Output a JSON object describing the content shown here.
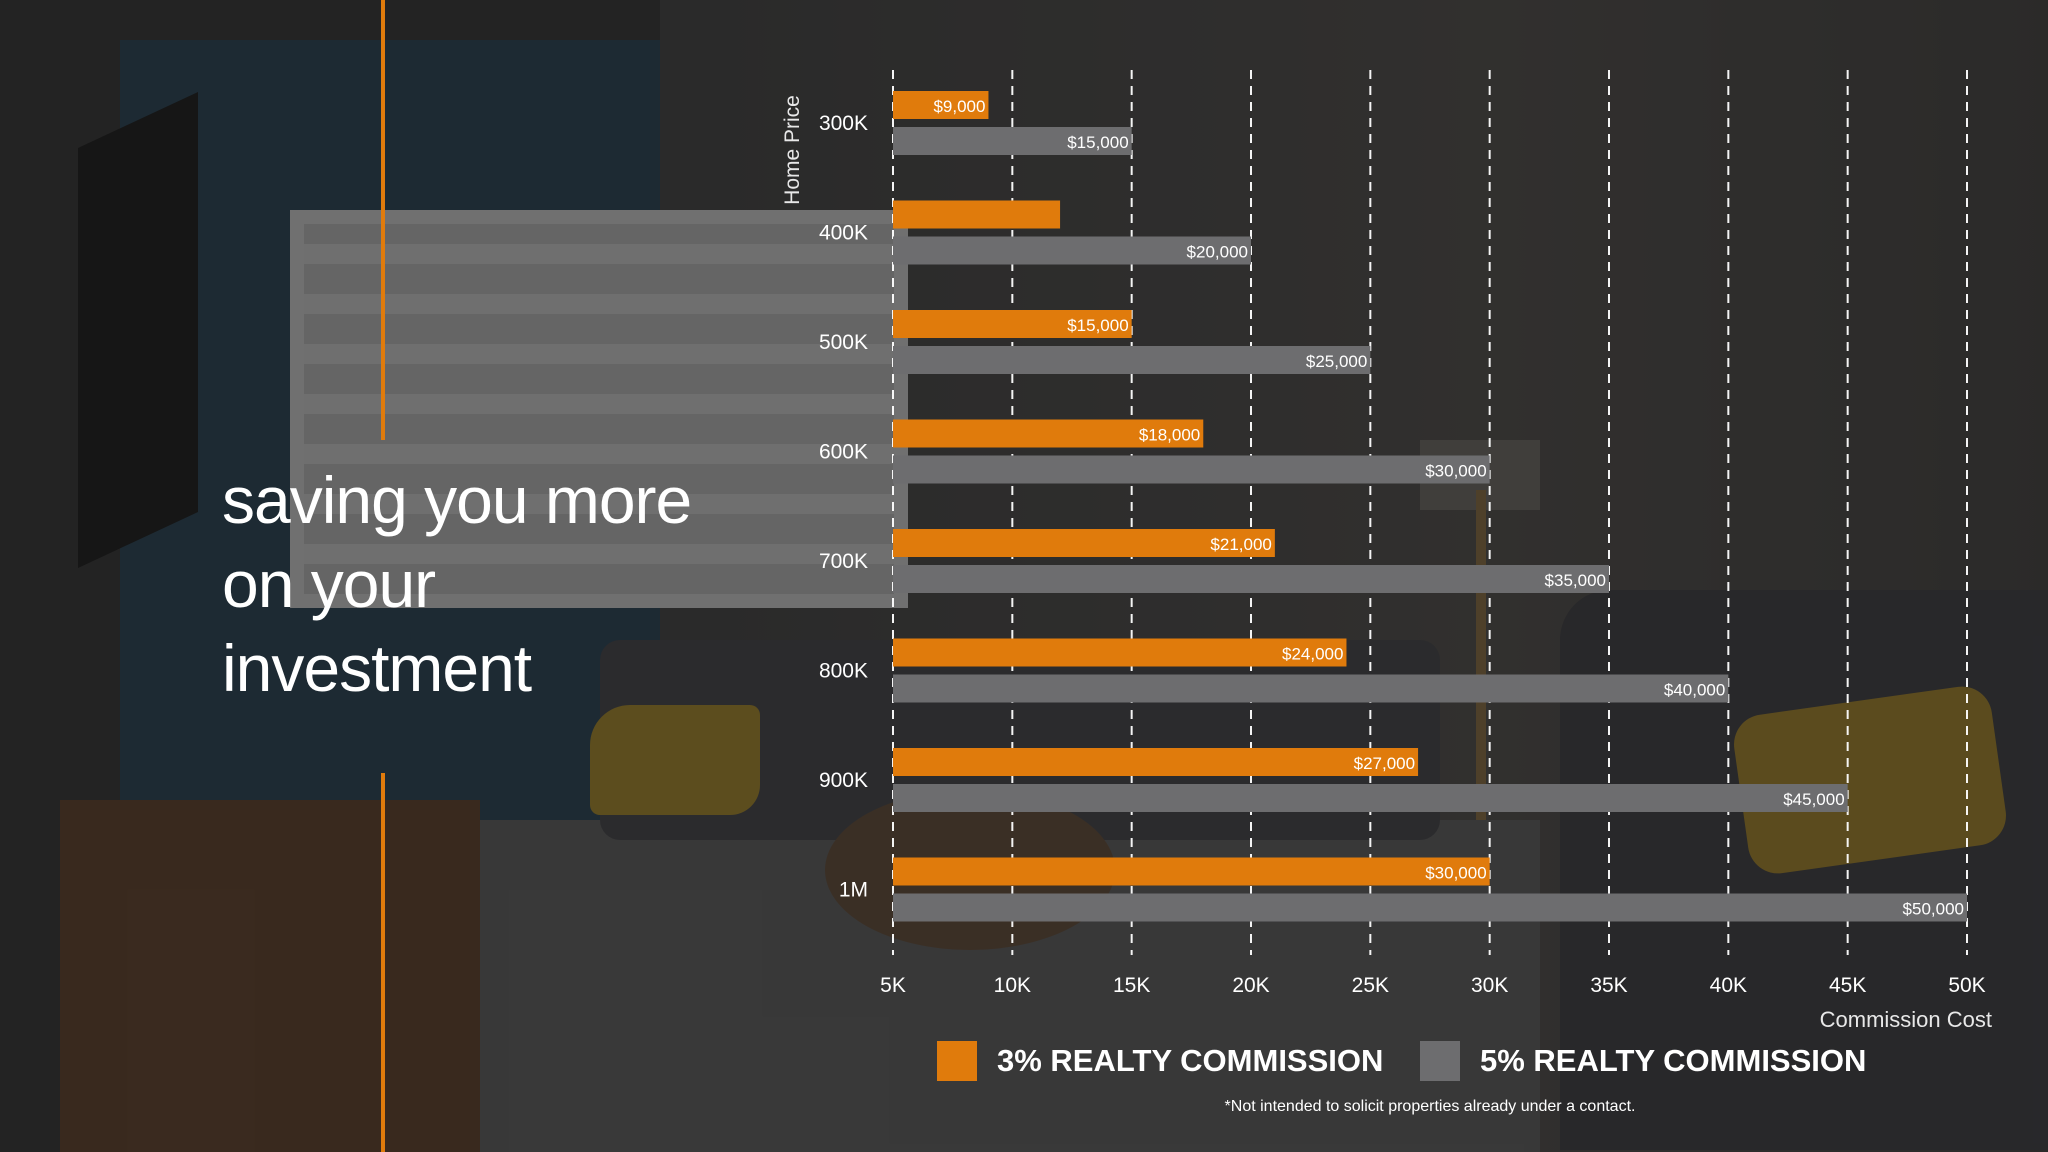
{
  "headline": "saving you more on your investment",
  "colors": {
    "accent": "#e07b0c",
    "series_3pct": "#e07b0c",
    "series_5pct": "#6d6d6f",
    "text": "#ffffff",
    "grid": "#ffffff"
  },
  "chart_data": {
    "type": "bar",
    "orientation": "horizontal",
    "categories": [
      "300K",
      "400K",
      "500K",
      "600K",
      "700K",
      "800K",
      "900K",
      "1M"
    ],
    "series": [
      {
        "name": "3% REALTY COMMISSION",
        "values": [
          9000,
          12000,
          15000,
          18000,
          21000,
          24000,
          27000,
          30000
        ],
        "labels": [
          "$9,000",
          "",
          "$15,000",
          "$18,000",
          "$21,000",
          "$24,000",
          "$27,000",
          "$30,000"
        ]
      },
      {
        "name": "5% REALTY COMMISSION",
        "values": [
          15000,
          20000,
          25000,
          30000,
          35000,
          40000,
          45000,
          50000
        ],
        "labels": [
          "$15,000",
          "$20,000",
          "$25,000",
          "$30,000",
          "$35,000",
          "$40,000",
          "$45,000",
          "$50,000"
        ]
      }
    ],
    "x_ticks": [
      "5K",
      "10K",
      "15K",
      "20K",
      "25K",
      "30K",
      "35K",
      "40K",
      "45K",
      "50K"
    ],
    "xlim": [
      5000,
      50000
    ],
    "xlabel": "Commission Cost",
    "ylabel": "Home Price",
    "grid": "vertical-dashed"
  },
  "legend": {
    "item1": "3% REALTY COMMISSION",
    "item2": "5% REALTY COMMISSION"
  },
  "disclaimer": "*Not intended to solicit properties already under a contact."
}
